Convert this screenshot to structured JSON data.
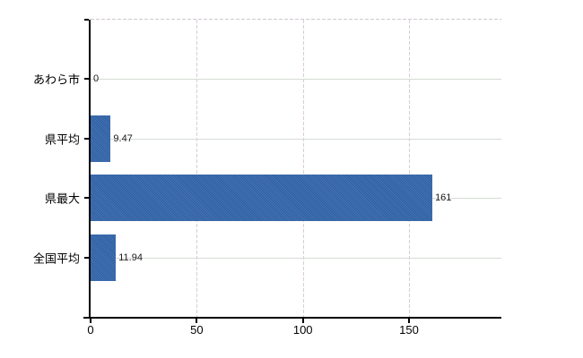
{
  "chart_data": {
    "type": "bar",
    "orientation": "horizontal",
    "title": "",
    "categories": [
      "あわら市",
      "県平均",
      "県最大",
      "全国平均"
    ],
    "values": [
      0,
      9.47,
      161,
      11.94
    ],
    "value_labels": [
      "0",
      "9.47",
      "161",
      "11.94"
    ],
    "x_ticks": [
      0,
      50,
      100,
      150
    ],
    "xlim": [
      0,
      193.5
    ],
    "grid": true,
    "legend": "none",
    "bar_color": "#3a69aa",
    "bar_color_light": "#4673b4",
    "bar_color_dark": "#2d5fa0",
    "axis_color": "#000000",
    "h_grid_color": "#d5dcd5",
    "v_grid_color": "#d8ccd8"
  }
}
